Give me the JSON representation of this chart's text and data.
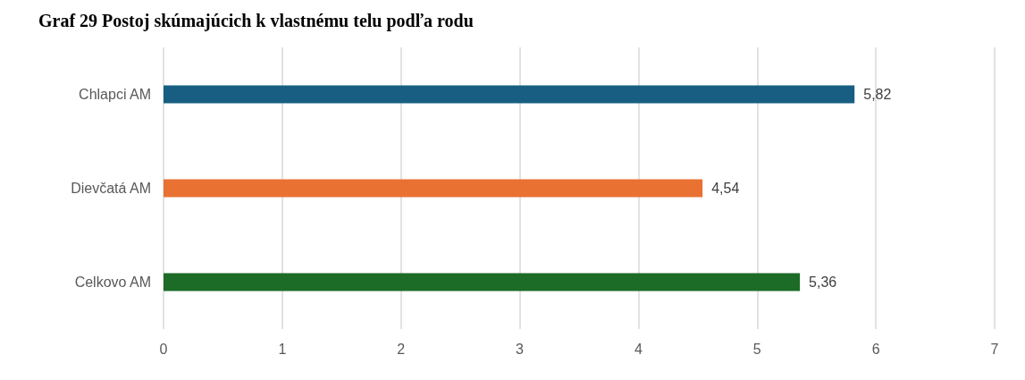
{
  "chart_data": {
    "type": "bar",
    "orientation": "horizontal",
    "title": "Graf 29 Postoj skúmajúcich k vlastnému telu podľa rodu",
    "categories": [
      "Chlapci AM",
      "Dievčatá AM",
      "Celkovo AM"
    ],
    "values": [
      5.82,
      4.54,
      5.36
    ],
    "colors": [
      "#175e82",
      "#e97132",
      "#1c6b26"
    ],
    "value_labels": [
      "5,82",
      "4,54",
      "5,36"
    ],
    "xlim": [
      0,
      7
    ],
    "xticks": [
      0,
      1,
      2,
      3,
      4,
      5,
      6,
      7
    ],
    "grid": "x"
  }
}
